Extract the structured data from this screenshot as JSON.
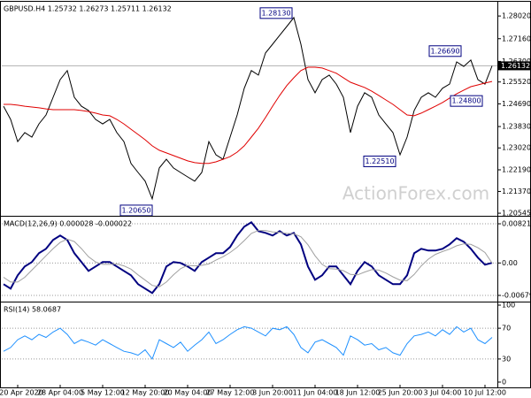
{
  "watermark": "ActionForex.com",
  "chart_data": [
    {
      "type": "line",
      "title": "GBPUSD.H4 1.25732 1.26273 1.25711 1.26132",
      "ylim": [
        1.2048,
        1.2856
      ],
      "yticks": [
        {
          "value": 1.2802,
          "label": "1.28020"
        },
        {
          "value": 1.2716,
          "label": "1.27160"
        },
        {
          "value": 1.263,
          "label": "1.26300"
        },
        {
          "value": 1.2552,
          "label": "1.25520"
        },
        {
          "value": 1.2469,
          "label": "1.24690"
        },
        {
          "value": 1.2383,
          "label": "1.23830"
        },
        {
          "value": 1.2302,
          "label": "1.23020"
        },
        {
          "value": 1.2219,
          "label": "1.22190"
        },
        {
          "value": 1.2137,
          "label": "1.21370"
        },
        {
          "value": 1.20545,
          "label": "1.20545"
        }
      ],
      "grid": false,
      "last_price": {
        "value": 1.26132,
        "label": "1.26132"
      },
      "annotations": [
        {
          "value": 1.2813,
          "label": "1.28130"
        },
        {
          "value": 1.2669,
          "label": "1.26690"
        },
        {
          "value": 1.248,
          "label": "1.24800"
        },
        {
          "value": 1.2251,
          "label": "1.22510"
        },
        {
          "value": 1.2065,
          "label": "1.20650"
        }
      ],
      "series": [
        {
          "color": "#000000",
          "values": [
            1.246,
            1.241,
            1.2326,
            1.236,
            1.2343,
            1.2393,
            1.2427,
            1.2494,
            1.2561,
            1.2595,
            1.2494,
            1.246,
            1.2444,
            1.241,
            1.2393,
            1.241,
            1.236,
            1.2326,
            1.2243,
            1.2209,
            1.2176,
            1.2109,
            1.2226,
            1.2259,
            1.2226,
            1.2209,
            1.2192,
            1.2176,
            1.2209,
            1.2326,
            1.2276,
            1.2259,
            1.2343,
            1.2427,
            1.2528,
            1.2595,
            1.2578,
            1.2662,
            1.2695,
            1.2729,
            1.2762,
            1.2796,
            1.2695,
            1.2561,
            1.2511,
            1.2561,
            1.2578,
            1.2544,
            1.2494,
            1.236,
            1.246,
            1.2511,
            1.2494,
            1.2427,
            1.2393,
            1.236,
            1.2276,
            1.2343,
            1.2444,
            1.2494,
            1.2511,
            1.2494,
            1.2528,
            1.2544,
            1.2628,
            1.2611,
            1.2635,
            1.2561,
            1.2544,
            1.2613
          ]
        },
        {
          "color": "#e00000",
          "values": [
            1.2467,
            1.2467,
            1.2464,
            1.246,
            1.2457,
            1.2454,
            1.245,
            1.2447,
            1.2447,
            1.2447,
            1.2447,
            1.2444,
            1.244,
            1.2434,
            1.2427,
            1.2424,
            1.241,
            1.2393,
            1.2373,
            1.2353,
            1.2333,
            1.231,
            1.2293,
            1.2283,
            1.2273,
            1.2263,
            1.2253,
            1.2246,
            1.2243,
            1.2243,
            1.2249,
            1.2259,
            1.2269,
            1.2286,
            1.231,
            1.2343,
            1.2377,
            1.2417,
            1.246,
            1.2501,
            1.2538,
            1.2568,
            1.2595,
            1.2608,
            1.2608,
            1.2605,
            1.2595,
            1.2585,
            1.2568,
            1.2551,
            1.2541,
            1.2531,
            1.2517,
            1.2501,
            1.2484,
            1.2467,
            1.2447,
            1.2427,
            1.2424,
            1.2434,
            1.2447,
            1.246,
            1.2474,
            1.2491,
            1.2507,
            1.2521,
            1.2534,
            1.2541,
            1.2548,
            1.2554
          ]
        }
      ]
    },
    {
      "type": "line",
      "title": "MACD(12,26,9) 0.000028 -0.000022",
      "ylim": [
        -0.00791,
        0.0097
      ],
      "yticks": [
        0.008213,
        {
          "value": 0,
          "label": "0.00"
        },
        -0.006796
      ],
      "grid": true,
      "series": [
        {
          "color": "#000080",
          "values": [
            -0.004447,
            -0.005374,
            -0.002594,
            -0.000741,
            0.000185,
            0.002038,
            0.002965,
            0.004818,
            0.005744,
            0.004818,
            0.002038,
            0.000185,
            -0.001668,
            -0.000741,
            0.000185,
            0.000185,
            -0.000741,
            -0.001668,
            -0.002594,
            -0.004447,
            -0.005374,
            -0.0063,
            -0.004447,
            -0.000741,
            0.000185,
            0,
            -0.000741,
            -0.001668,
            0.000185,
            0.001112,
            0.002038,
            0.002038,
            0.003335,
            0.005744,
            0.007597,
            0.008524,
            0.006671,
            0.0063,
            0.005744,
            0.006671,
            0.005744,
            0.0063,
            0.003891,
            -0.000741,
            -0.003521,
            -0.002594,
            -0.000741,
            -0.000741,
            -0.002594,
            -0.004447,
            -0.001668,
            0.000185,
            -0.000741,
            -0.002594,
            -0.003521,
            -0.004447,
            -0.004447,
            -0.002594,
            0.002038,
            0.002965,
            0.002594,
            0.002594,
            0.002965,
            0.003891,
            0.005188,
            0.004447,
            0.002965,
            0.001112,
            -0.000371,
            2.8e-05
          ]
        },
        {
          "color": "#a0a0a0",
          "values": [
            -0.003,
            -0.004,
            -0.004,
            -0.003,
            -0.0015,
            0,
            0.0015,
            0.003,
            0.0043,
            0.005,
            0.0045,
            0.003,
            0.0013,
            0.0002,
            -0.0003,
            -0.0003,
            -0.0002,
            -0.0006,
            -0.0013,
            -0.0025,
            -0.0036,
            -0.0047,
            -0.005,
            -0.004,
            -0.0025,
            -0.0012,
            -0.0005,
            -0.0006,
            -0.0005,
            -0.0002,
            0.0006,
            0.0013,
            0.0022,
            0.0033,
            0.0047,
            0.0062,
            0.0068,
            0.0068,
            0.0065,
            0.0064,
            0.0062,
            0.0061,
            0.0055,
            0.0038,
            0.0015,
            -0.0003,
            -0.0012,
            -0.0013,
            -0.0016,
            -0.0024,
            -0.0025,
            -0.0019,
            -0.0014,
            -0.0015,
            -0.0021,
            -0.0029,
            -0.0036,
            -0.0037,
            -0.0024,
            -0.0006,
            0.0008,
            0.0018,
            0.0024,
            0.0029,
            0.0036,
            0.004,
            0.0039,
            0.0032,
            0.0022,
            -2.2e-05
          ]
        }
      ]
    },
    {
      "type": "line",
      "title": "RSI(14) 58.0687",
      "ylim": [
        0,
        100
      ],
      "yticks": [
        100,
        70,
        30,
        0
      ],
      "grid": true,
      "categories": [
        null,
        null,
        "20 Apr 2020",
        null,
        null,
        null,
        null,
        null,
        "28 Apr 04:00",
        null,
        null,
        null,
        null,
        null,
        "5 May 12:00",
        null,
        null,
        null,
        null,
        null,
        "12 May 20:00",
        null,
        null,
        null,
        null,
        null,
        "20 May 04:00",
        null,
        null,
        null,
        null,
        null,
        "27 May 12:00",
        null,
        null,
        null,
        null,
        null,
        "3 Jun 20:00",
        null,
        null,
        null,
        null,
        null,
        "11 Jun 04:00",
        null,
        null,
        null,
        null,
        null,
        "18 Jun 12:00",
        null,
        null,
        null,
        null,
        null,
        "25 Jun 20:00",
        null,
        null,
        null,
        null,
        null,
        "3 Jul 04:00",
        null,
        null,
        null,
        null,
        null,
        "10 Jul 12:00",
        null
      ],
      "series": [
        {
          "color": "#1e90ff",
          "values": [
            40,
            45,
            55,
            60,
            55,
            62,
            58,
            65,
            70,
            62,
            50,
            55,
            52,
            48,
            55,
            50,
            45,
            40,
            38,
            35,
            42,
            30,
            55,
            50,
            45,
            52,
            40,
            48,
            55,
            65,
            50,
            55,
            62,
            68,
            72,
            70,
            65,
            60,
            70,
            68,
            72,
            62,
            45,
            38,
            52,
            55,
            50,
            45,
            35,
            60,
            55,
            48,
            50,
            42,
            45,
            38,
            35,
            50,
            60,
            62,
            65,
            60,
            68,
            62,
            72,
            65,
            70,
            55,
            50,
            58.0687
          ]
        }
      ]
    }
  ]
}
